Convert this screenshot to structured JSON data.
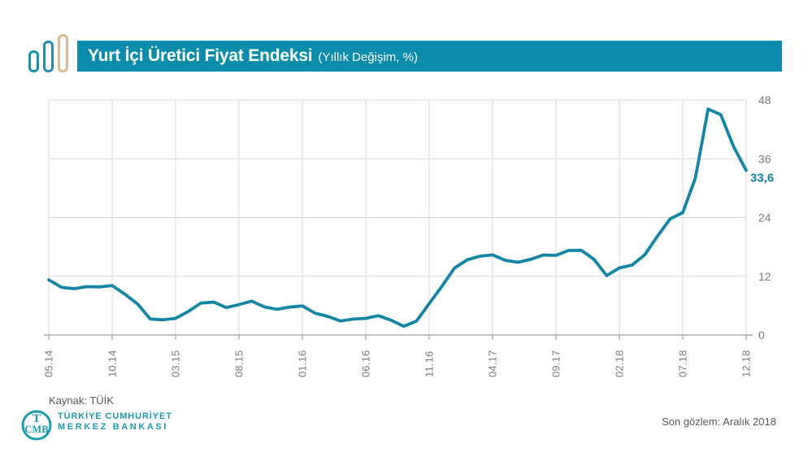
{
  "header": {
    "title": "Yurt İçi Üretici Fiyat Endeksi",
    "subtitle": "(Yıllık Değişim, %)",
    "banner_color": "#0b8cab",
    "logo_bar_colors": [
      "#1b8fae",
      "#1b8fae",
      "#d8b88e"
    ]
  },
  "chart_data": {
    "type": "line",
    "title": "Yurt İçi Üretici Fiyat Endeksi (Yıllık Değişim, %)",
    "x": [
      "05.14",
      "06.14",
      "07.14",
      "08.14",
      "09.14",
      "10.14",
      "11.14",
      "12.14",
      "01.15",
      "02.15",
      "03.15",
      "04.15",
      "05.15",
      "06.15",
      "07.15",
      "08.15",
      "09.15",
      "10.15",
      "11.15",
      "12.15",
      "01.16",
      "02.16",
      "03.16",
      "04.16",
      "05.16",
      "06.16",
      "07.16",
      "08.16",
      "09.16",
      "10.16",
      "11.16",
      "12.16",
      "01.17",
      "02.17",
      "03.17",
      "04.17",
      "05.17",
      "06.17",
      "07.17",
      "08.17",
      "09.17",
      "10.17",
      "11.17",
      "12.17",
      "01.18",
      "02.18",
      "03.18",
      "04.18",
      "05.18",
      "06.18",
      "07.18",
      "08.18",
      "09.18",
      "10.18",
      "11.18",
      "12.18"
    ],
    "values": [
      11.28,
      9.75,
      9.46,
      9.88,
      9.84,
      10.1,
      8.36,
      6.36,
      3.28,
      3.1,
      3.41,
      4.8,
      6.52,
      6.73,
      5.62,
      6.21,
      6.92,
      5.74,
      5.25,
      5.71,
      5.94,
      4.47,
      3.8,
      2.87,
      3.25,
      3.41,
      3.96,
      3.03,
      1.78,
      2.84,
      6.41,
      9.94,
      13.69,
      15.36,
      16.09,
      16.37,
      15.26,
      14.87,
      15.45,
      16.34,
      16.28,
      17.28,
      17.3,
      15.47,
      12.14,
      13.71,
      14.28,
      16.37,
      20.16,
      23.71,
      25.0,
      32.13,
      46.15,
      45.01,
      38.54,
      33.64
    ],
    "x_ticks": [
      {
        "i": 0,
        "label": "05.14"
      },
      {
        "i": 5,
        "label": "10.14"
      },
      {
        "i": 10,
        "label": "03.15"
      },
      {
        "i": 15,
        "label": "08.15"
      },
      {
        "i": 20,
        "label": "01.16"
      },
      {
        "i": 25,
        "label": "06.16"
      },
      {
        "i": 30,
        "label": "11.16"
      },
      {
        "i": 35,
        "label": "04.17"
      },
      {
        "i": 40,
        "label": "09.17"
      },
      {
        "i": 45,
        "label": "02.18"
      },
      {
        "i": 50,
        "label": "07.18"
      },
      {
        "i": 55,
        "label": "12.18"
      }
    ],
    "y_ticks": [
      0,
      12,
      24,
      36,
      48
    ],
    "ylim": [
      0,
      48
    ],
    "grid": true,
    "legend": "none",
    "line_color": "#1385a7",
    "last_value_label": "33,6"
  },
  "footer": {
    "source": "Kaynak: TÜİK",
    "bank_name_line1": "TÜRKİYE CUMHURİYET",
    "bank_name_line2": "MERKEZ BANKASI",
    "bank_monogram_top": "T",
    "bank_monogram_bottom": "CMB",
    "last_obs": "Son gözlem: Aralık 2018"
  }
}
